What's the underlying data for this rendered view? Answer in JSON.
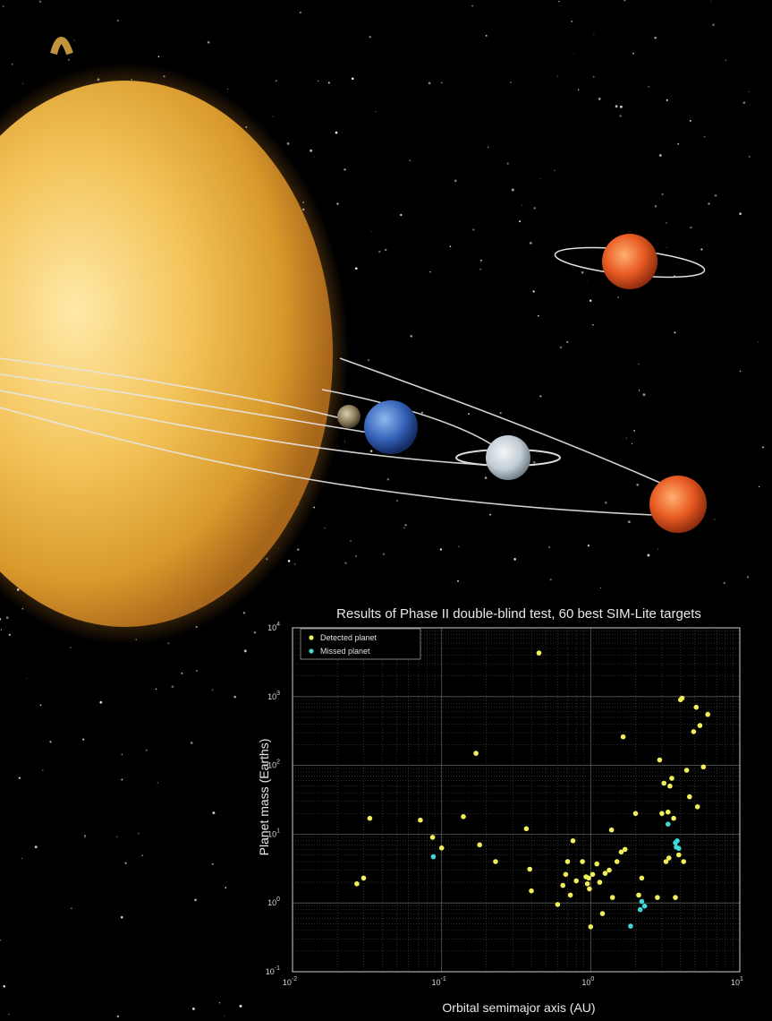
{
  "colors": {
    "detected": "#f2f05a",
    "missed": "#3fd6d6",
    "grid": "#5a5a5a",
    "text": "#e8e8e8"
  },
  "chart_data": {
    "type": "scatter",
    "title": "Results of Phase II double-blind test, 60 best SIM-Lite targets",
    "xlabel": "Orbital semimajor axis (AU)",
    "ylabel": "Planet mass (Earths)",
    "x_scale": "log",
    "y_scale": "log",
    "xlim": [
      0.01,
      10
    ],
    "ylim": [
      0.1,
      10000
    ],
    "x_ticks": [
      {
        "value": 0.01,
        "base": "10",
        "exp": "-2"
      },
      {
        "value": 0.1,
        "base": "10",
        "exp": "-1"
      },
      {
        "value": 1,
        "base": "10",
        "exp": "0"
      },
      {
        "value": 10,
        "base": "10",
        "exp": "1"
      }
    ],
    "y_ticks": [
      {
        "value": 0.1,
        "base": "10",
        "exp": "-1"
      },
      {
        "value": 1,
        "base": "10",
        "exp": "0"
      },
      {
        "value": 10,
        "base": "10",
        "exp": "1"
      },
      {
        "value": 100,
        "base": "10",
        "exp": "2"
      },
      {
        "value": 1000,
        "base": "10",
        "exp": "3"
      },
      {
        "value": 10000,
        "base": "10",
        "exp": "4"
      }
    ],
    "grid": true,
    "legend_position": "top-left",
    "series": [
      {
        "name": "Detected planet",
        "points": [
          [
            0.027,
            1.9
          ],
          [
            0.03,
            2.3
          ],
          [
            0.033,
            17
          ],
          [
            0.072,
            16
          ],
          [
            0.087,
            9
          ],
          [
            0.1,
            6.3
          ],
          [
            0.14,
            18
          ],
          [
            0.17,
            150
          ],
          [
            0.18,
            7
          ],
          [
            0.23,
            4
          ],
          [
            0.37,
            12
          ],
          [
            0.39,
            3.1
          ],
          [
            0.4,
            1.5
          ],
          [
            0.45,
            4300
          ],
          [
            0.6,
            0.95
          ],
          [
            0.65,
            1.8
          ],
          [
            0.68,
            2.6
          ],
          [
            0.7,
            4
          ],
          [
            0.73,
            1.3
          ],
          [
            0.76,
            8
          ],
          [
            0.8,
            2.1
          ],
          [
            0.88,
            4
          ],
          [
            0.93,
            2.4
          ],
          [
            0.95,
            1.9
          ],
          [
            0.97,
            2.3
          ],
          [
            0.98,
            1.6
          ],
          [
            1.0,
            0.45
          ],
          [
            1.03,
            2.6
          ],
          [
            1.1,
            3.7
          ],
          [
            1.15,
            2
          ],
          [
            1.2,
            0.7
          ],
          [
            1.25,
            2.7
          ],
          [
            1.33,
            3
          ],
          [
            1.38,
            11.5
          ],
          [
            1.4,
            1.2
          ],
          [
            1.5,
            4
          ],
          [
            1.6,
            5.5
          ],
          [
            1.65,
            260
          ],
          [
            1.7,
            6
          ],
          [
            2.0,
            20
          ],
          [
            2.1,
            1.3
          ],
          [
            2.2,
            2.3
          ],
          [
            2.8,
            1.2
          ],
          [
            2.9,
            120
          ],
          [
            3.0,
            20
          ],
          [
            3.1,
            55
          ],
          [
            3.2,
            4
          ],
          [
            3.3,
            21
          ],
          [
            3.35,
            4.5
          ],
          [
            3.4,
            50
          ],
          [
            3.5,
            65
          ],
          [
            3.6,
            17
          ],
          [
            3.7,
            1.2
          ],
          [
            3.9,
            5
          ],
          [
            4.0,
            900
          ],
          [
            4.1,
            950
          ],
          [
            4.2,
            4
          ],
          [
            4.4,
            85
          ],
          [
            4.6,
            35
          ],
          [
            4.9,
            310
          ],
          [
            5.1,
            700
          ],
          [
            5.2,
            25
          ],
          [
            5.4,
            380
          ],
          [
            5.7,
            95
          ],
          [
            6.1,
            550
          ]
        ]
      },
      {
        "name": "Missed planet",
        "points": [
          [
            0.088,
            4.7
          ],
          [
            1.85,
            0.46
          ],
          [
            2.15,
            0.8
          ],
          [
            2.2,
            1.05
          ],
          [
            2.3,
            0.9
          ],
          [
            3.3,
            14
          ],
          [
            3.7,
            7.5
          ],
          [
            3.75,
            6.5
          ],
          [
            3.8,
            8
          ],
          [
            3.9,
            6.2
          ]
        ]
      }
    ]
  }
}
